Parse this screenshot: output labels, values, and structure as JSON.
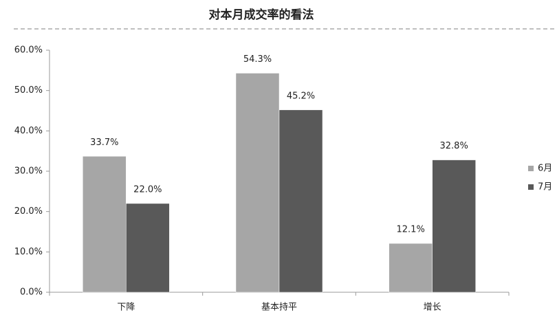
{
  "chart_data": {
    "type": "bar",
    "title": "对本月成交率的看法",
    "categories": [
      "下降",
      "基本持平",
      "增长"
    ],
    "series": [
      {
        "name": "6月",
        "color": "#a6a6a6",
        "values": [
          33.7,
          54.3,
          12.1
        ],
        "value_labels": [
          "33.7%",
          "54.3%",
          "12.1%"
        ]
      },
      {
        "name": "7月",
        "color": "#595959",
        "values": [
          22.0,
          45.2,
          32.8
        ],
        "value_labels": [
          "22.0%",
          "45.2%",
          "32.8%"
        ]
      }
    ],
    "ylim": [
      0,
      60
    ],
    "yticks": [
      {
        "value": 0,
        "label": "0.0%"
      },
      {
        "value": 10,
        "label": "10.0%"
      },
      {
        "value": 20,
        "label": "20.0%"
      },
      {
        "value": 30,
        "label": "30.0%"
      },
      {
        "value": 40,
        "label": "40.0%"
      },
      {
        "value": 50,
        "label": "50.0%"
      },
      {
        "value": 60,
        "label": "60.0%"
      }
    ],
    "grid": false,
    "legend": "right"
  }
}
